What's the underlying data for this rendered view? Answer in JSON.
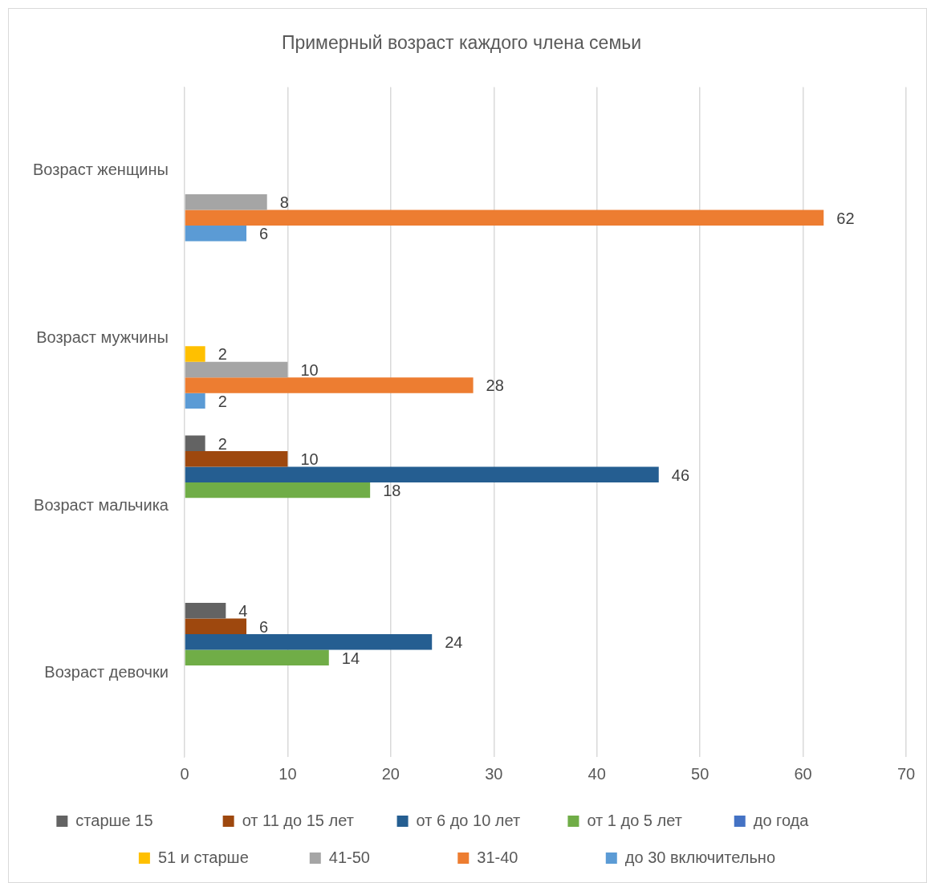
{
  "chart_data": {
    "type": "bar",
    "orientation": "horizontal",
    "title": "Примерный возраст каждого члена семьи",
    "categories": [
      "Возраст женщины",
      "Возраст мужчины",
      "Возраст мальчика",
      "Возраст девочки"
    ],
    "series": [
      {
        "name": "старше 15",
        "color": "#636363",
        "values": [
          null,
          null,
          2,
          4
        ]
      },
      {
        "name": "от 11 до 15 лет",
        "color": "#9e480e",
        "values": [
          null,
          null,
          10,
          6
        ]
      },
      {
        "name": "от 6 до 10 лет",
        "color": "#255e91",
        "values": [
          null,
          null,
          46,
          24
        ]
      },
      {
        "name": "от 1 до 5 лет",
        "color": "#70ad47",
        "values": [
          null,
          null,
          18,
          14
        ]
      },
      {
        "name": "до года",
        "color": "#4472c4",
        "values": [
          null,
          null,
          null,
          null
        ]
      },
      {
        "name": "51 и старше",
        "color": "#ffc000",
        "values": [
          null,
          2,
          null,
          null
        ]
      },
      {
        "name": "41-50",
        "color": "#a5a5a5",
        "values": [
          8,
          10,
          null,
          null
        ]
      },
      {
        "name": "31-40",
        "color": "#ed7d31",
        "values": [
          62,
          28,
          null,
          null
        ]
      },
      {
        "name": "до 30 включительно",
        "color": "#5b9bd5",
        "values": [
          6,
          2,
          null,
          null
        ]
      }
    ],
    "xlim": [
      0,
      70
    ],
    "xticks": [
      0,
      10,
      20,
      30,
      40,
      50,
      60,
      70
    ],
    "grid": "x",
    "legend": "bottom",
    "data_labels": true
  }
}
